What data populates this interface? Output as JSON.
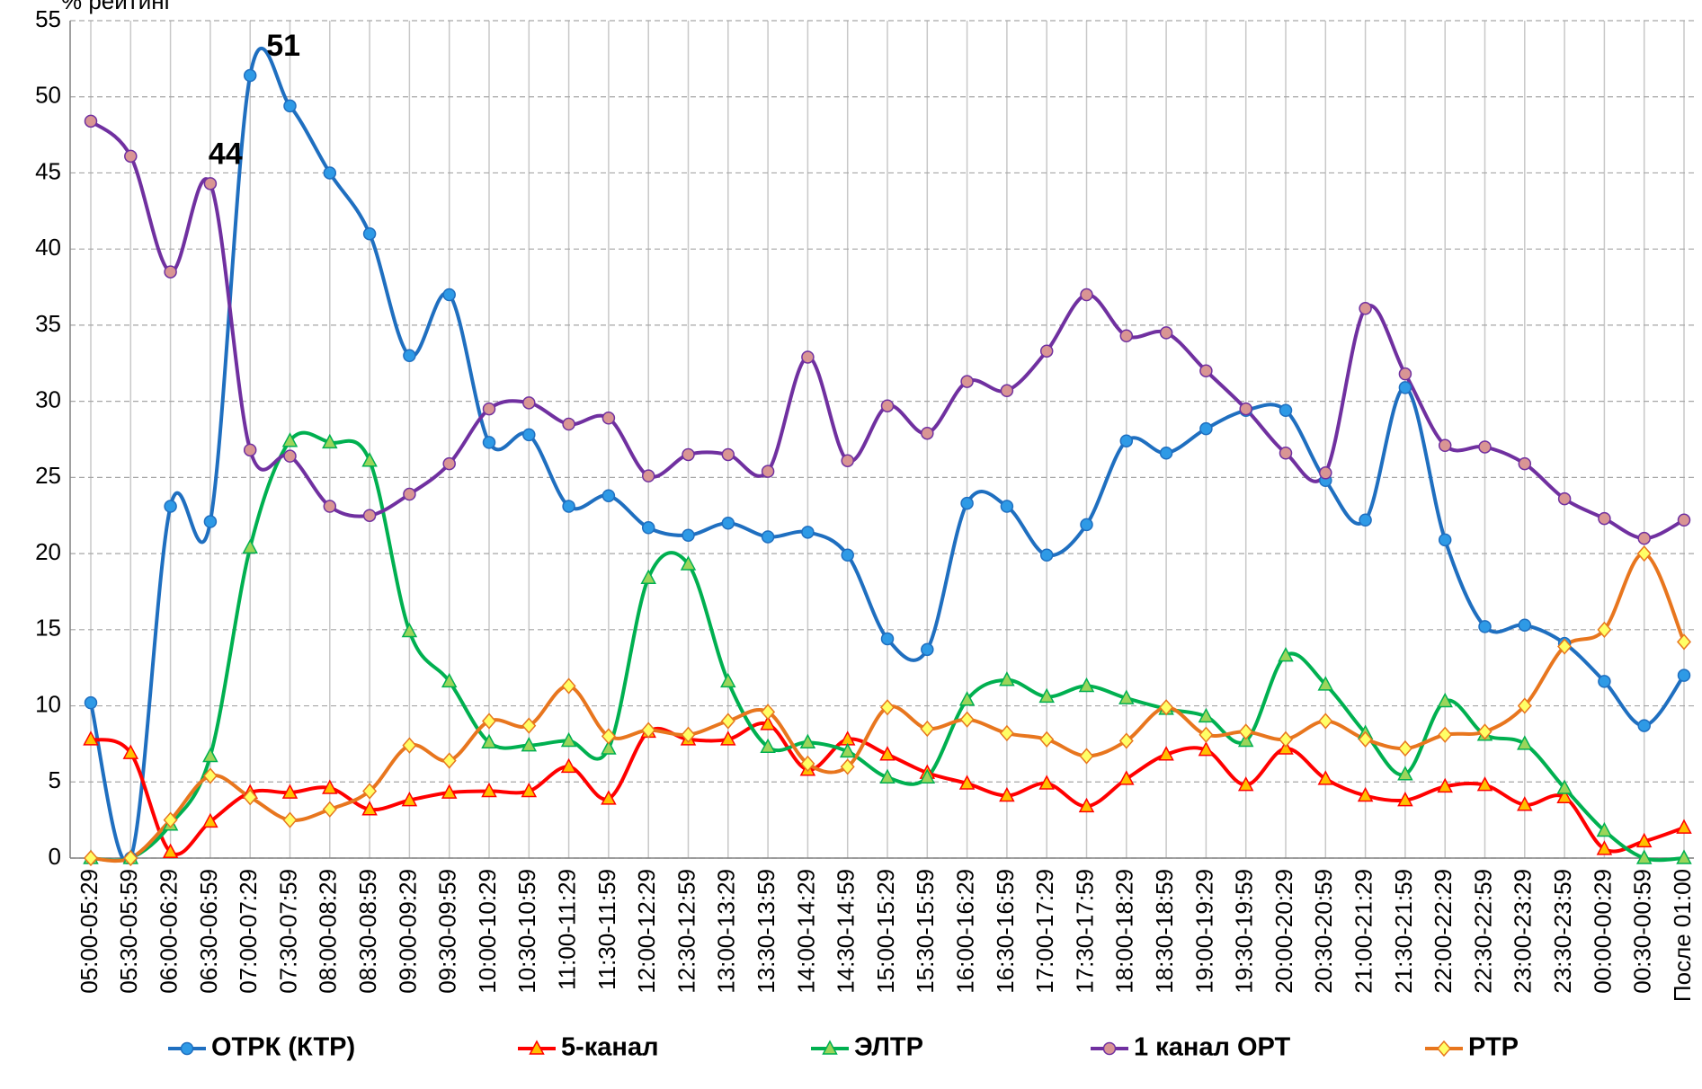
{
  "chart_data": {
    "type": "line",
    "y_label": "% рейтинг",
    "categories": [
      "05:00-05:29",
      "05:30-05:59",
      "06:00-06:29",
      "06:30-06:59",
      "07:00-07:29",
      "07:30-07:59",
      "08:00-08:29",
      "08:30-08:59",
      "09:00-09:29",
      "09:30-09:59",
      "10:00-10:29",
      "10:30-10:59",
      "11:00-11:29",
      "11:30-11:59",
      "12:00-12:29",
      "12:30-12:59",
      "13:00-13:29",
      "13:30-13:59",
      "14:00-14:29",
      "14:30-14:59",
      "15:00-15:29",
      "15:30-15:59",
      "16:00-16:29",
      "16:30-16:59",
      "17:00-17:29",
      "17:30-17:59",
      "18:00-18:29",
      "18:30-18:59",
      "19:00-19:29",
      "19:30-19:59",
      "20:00-20:29",
      "20:30-20:59",
      "21:00-21:29",
      "21:30-21:59",
      "22:00-22:29",
      "22:30-22:59",
      "23:00-23:29",
      "23:30-23:59",
      "00:00-00:29",
      "00:30-00:59",
      "После 01:00"
    ],
    "series": [
      {
        "name": "ОТРК (КТР)",
        "color": "#1f6fc0",
        "marker": "circle",
        "marker_fill": "#2e9ae6",
        "values": [
          10.2,
          0,
          23.1,
          22.1,
          51.4,
          49.4,
          45,
          41,
          33,
          37,
          27.3,
          27.8,
          23.1,
          23.8,
          21.7,
          21.2,
          22,
          21.1,
          21.4,
          19.9,
          14.4,
          13.7,
          23.3,
          23.1,
          19.9,
          21.9,
          27.4,
          26.6,
          28.2,
          29.4,
          29.4,
          24.8,
          22.2,
          30.9,
          20.9,
          15.2,
          15.3,
          14.1,
          11.6,
          8.7,
          12
        ]
      },
      {
        "name": "5-канал",
        "color": "#ff0000",
        "marker": "triangle",
        "marker_fill": "#ffc000",
        "values": [
          7.8,
          6.9,
          0.4,
          2.4,
          4.3,
          4.3,
          4.6,
          3.2,
          3.8,
          4.3,
          4.4,
          4.4,
          6,
          3.9,
          8.3,
          7.8,
          7.8,
          8.8,
          5.8,
          7.8,
          6.8,
          5.6,
          4.9,
          4.1,
          4.9,
          3.4,
          5.2,
          6.8,
          7.1,
          4.8,
          7.2,
          5.2,
          4.1,
          3.8,
          4.7,
          4.8,
          3.5,
          4,
          0.6,
          1.1,
          2
        ]
      },
      {
        "name": "ЭЛТР",
        "color": "#00b050",
        "marker": "triangle",
        "marker_fill": "#9bd55a",
        "values": [
          0,
          0,
          2.2,
          6.7,
          20.4,
          27.4,
          27.3,
          26.1,
          14.9,
          11.6,
          7.6,
          7.4,
          7.7,
          7.2,
          18.4,
          19.3,
          11.6,
          7.3,
          7.6,
          7,
          5.3,
          5.3,
          10.4,
          11.7,
          10.6,
          11.3,
          10.5,
          9.8,
          9.3,
          7.7,
          13.3,
          11.4,
          8.2,
          5.5,
          10.3,
          8.1,
          7.5,
          4.6,
          1.8,
          0,
          0
        ]
      },
      {
        "name": "1 канал ОРТ",
        "color": "#7030a0",
        "marker": "circle",
        "marker_fill": "#d99594",
        "values": [
          48.4,
          46.1,
          38.5,
          44.3,
          26.8,
          26.4,
          23.1,
          22.5,
          23.9,
          25.9,
          29.5,
          29.9,
          28.5,
          28.9,
          25.1,
          26.5,
          26.5,
          25.4,
          32.9,
          26.1,
          29.7,
          27.9,
          31.3,
          30.7,
          33.3,
          37,
          34.3,
          34.5,
          32,
          29.5,
          26.6,
          25.3,
          36.1,
          31.8,
          27.1,
          27,
          25.9,
          23.6,
          22.3,
          21,
          22.2
        ]
      },
      {
        "name": "РТР",
        "color": "#e8761e",
        "marker": "diamond",
        "marker_fill": "#ffff66",
        "values": [
          0,
          0,
          2.5,
          5.4,
          4,
          2.5,
          3.2,
          4.4,
          7.4,
          6.4,
          9,
          8.7,
          11.3,
          8,
          8.4,
          8.1,
          9,
          9.6,
          6.2,
          6,
          9.9,
          8.5,
          9.1,
          8.2,
          7.8,
          6.7,
          7.7,
          9.9,
          8.1,
          8.3,
          7.8,
          9,
          7.8,
          7.2,
          8.1,
          8.3,
          10,
          13.9,
          15,
          20,
          14.2
        ]
      }
    ],
    "annotations": [
      {
        "text": "51",
        "color": "#4f81bd",
        "series": 0,
        "index": 4
      },
      {
        "text": "44",
        "color": "#60497a",
        "series": 3,
        "index": 3
      }
    ],
    "ylim": [
      0,
      55
    ],
    "yticks": [
      0,
      5,
      10,
      15,
      20,
      25,
      30,
      35,
      40,
      45,
      50,
      55
    ],
    "grid": true,
    "legend": "bottom"
  }
}
